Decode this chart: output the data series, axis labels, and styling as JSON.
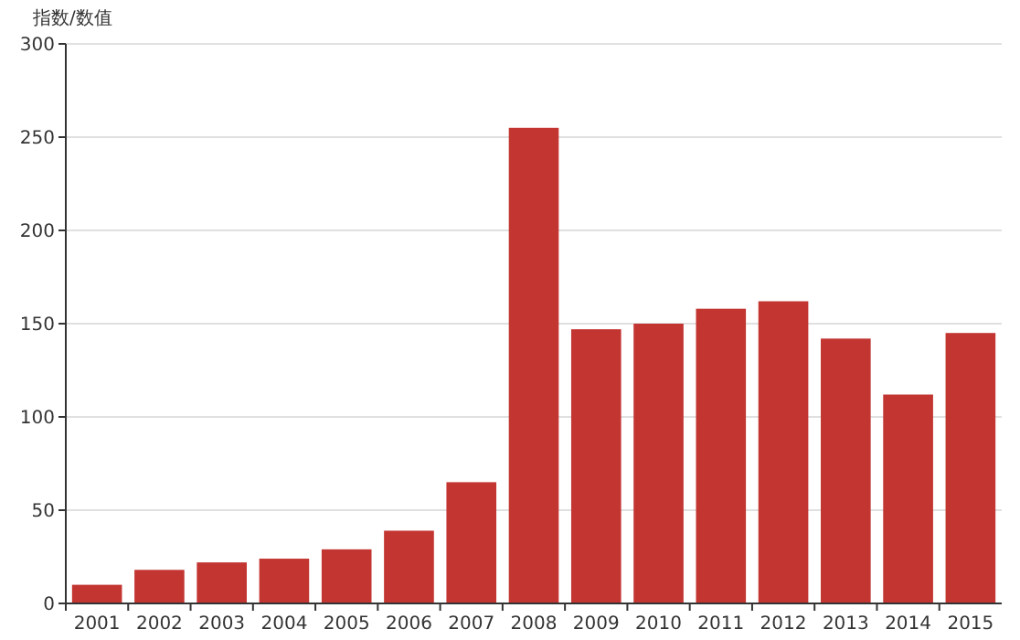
{
  "chart_data": {
    "type": "bar",
    "ylabel": "指数/数值",
    "categories": [
      "2001",
      "2002",
      "2003",
      "2004",
      "2005",
      "2006",
      "2007",
      "2008",
      "2009",
      "2010",
      "2011",
      "2012",
      "2013",
      "2014",
      "2015"
    ],
    "values": [
      10,
      18,
      22,
      24,
      29,
      39,
      65,
      255,
      147,
      150,
      158,
      162,
      142,
      112,
      145
    ],
    "color": "#c23531",
    "ylim": [
      0,
      300
    ],
    "yticks": [
      0,
      50,
      100,
      150,
      200,
      250,
      300
    ],
    "grid": "y"
  }
}
